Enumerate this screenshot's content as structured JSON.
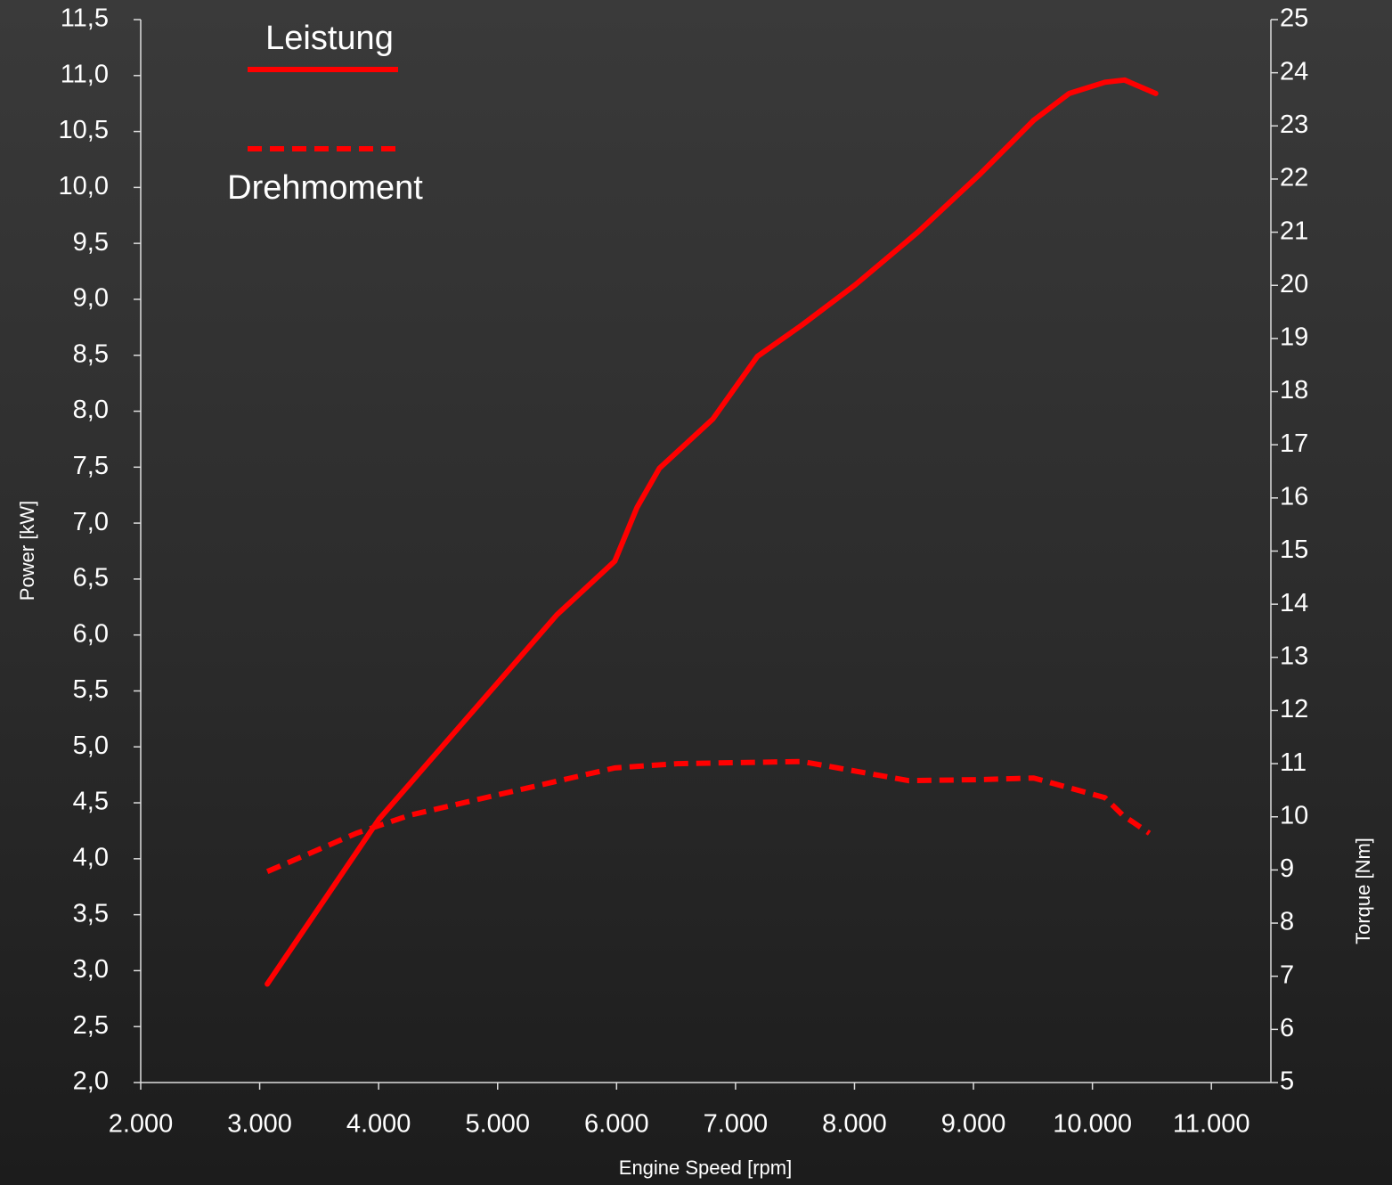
{
  "chart_data": {
    "type": "line",
    "x_label": "Engine Speed [rpm]",
    "y_label": "Power [kW]",
    "y2_label": "Torque [Nm]",
    "xlim": [
      2000,
      11500
    ],
    "xticks": [
      {
        "value": 2000,
        "label": "2.000"
      },
      {
        "value": 3000,
        "label": "3.000"
      },
      {
        "value": 4000,
        "label": "4.000"
      },
      {
        "value": 5000,
        "label": "5.000"
      },
      {
        "value": 6000,
        "label": "6.000"
      },
      {
        "value": 7000,
        "label": "7.000"
      },
      {
        "value": 8000,
        "label": "8.000"
      },
      {
        "value": 9000,
        "label": "9.000"
      },
      {
        "value": 10000,
        "label": "10.000"
      },
      {
        "value": 11000,
        "label": "11.000"
      }
    ],
    "ylim": [
      2,
      11.5
    ],
    "yticks": [
      {
        "value": 2,
        "label": "2,0"
      },
      {
        "value": 2.5,
        "label": "2,5"
      },
      {
        "value": 3,
        "label": "3,0"
      },
      {
        "value": 3.5,
        "label": "3,5"
      },
      {
        "value": 4,
        "label": "4,0"
      },
      {
        "value": 4.5,
        "label": "4,5"
      },
      {
        "value": 5,
        "label": "5,0"
      },
      {
        "value": 5.5,
        "label": "5,5"
      },
      {
        "value": 6,
        "label": "6,0"
      },
      {
        "value": 6.5,
        "label": "6,5"
      },
      {
        "value": 7,
        "label": "7,0"
      },
      {
        "value": 7.5,
        "label": "7,5"
      },
      {
        "value": 8,
        "label": "8,0"
      },
      {
        "value": 8.5,
        "label": "8,5"
      },
      {
        "value": 9,
        "label": "9,0"
      },
      {
        "value": 9.5,
        "label": "9,5"
      },
      {
        "value": 10,
        "label": "10,0"
      },
      {
        "value": 10.5,
        "label": "10,5"
      },
      {
        "value": 11,
        "label": "11,0"
      },
      {
        "value": 11.5,
        "label": "11,5"
      }
    ],
    "y2lim": [
      5,
      25
    ],
    "y2ticks": [
      5,
      6,
      7,
      8,
      9,
      10,
      11,
      12,
      13,
      14,
      15,
      16,
      17,
      18,
      19,
      20,
      21,
      22,
      23,
      24,
      25
    ],
    "series": [
      {
        "name": "Leistung",
        "color": "#ff0000",
        "line_style": "solid",
        "x": [
          3064,
          4000,
          4974,
          5498,
          5985,
          6172,
          6360,
          6809,
          7184,
          7558,
          8007,
          8532,
          9056,
          9506,
          9805,
          10105,
          10270,
          10532
        ],
        "values": [
          2.88,
          4.35,
          5.54,
          6.18,
          6.66,
          7.14,
          7.49,
          7.93,
          8.49,
          8.77,
          9.13,
          9.6,
          10.12,
          10.6,
          10.84,
          10.94,
          10.96,
          10.84
        ]
      },
      {
        "name": "Drehmoment",
        "color": "#ff0000",
        "line_style": "dashed",
        "axis": "y2",
        "x": [
          3064,
          3813,
          4262,
          4974,
          5985,
          6509,
          7558,
          7858,
          8457,
          9056,
          9506,
          10105,
          10255,
          10479
        ],
        "values": [
          8.97,
          9.69,
          10.03,
          10.4,
          10.92,
          11.0,
          11.04,
          10.92,
          10.68,
          10.7,
          10.73,
          10.36,
          10.03,
          9.69
        ]
      }
    ]
  }
}
